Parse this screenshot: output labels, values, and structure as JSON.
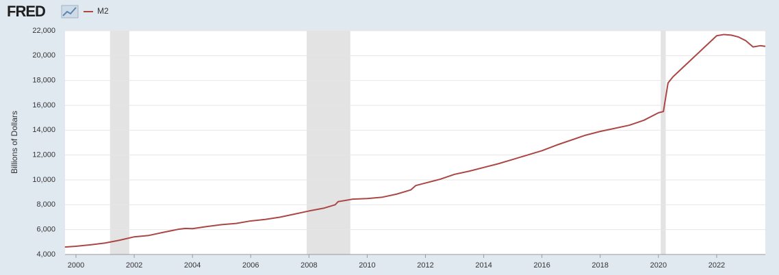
{
  "chart_data": {
    "type": "line",
    "source": "FRED",
    "y_label": "Billions of Dollars",
    "xlim": [
      1999.624,
      2023.67
    ],
    "xticks": [
      2000,
      2002,
      2004,
      2006,
      2008,
      2010,
      2012,
      2014,
      2016,
      2018,
      2020,
      2022
    ],
    "ylim": [
      4000,
      22000
    ],
    "yticks": [
      {
        "value": 4000,
        "label": "4,000"
      },
      {
        "value": 6000,
        "label": "6,000"
      },
      {
        "value": 8000,
        "label": "8,000"
      },
      {
        "value": 10000,
        "label": "10,000"
      },
      {
        "value": 12000,
        "label": "12,000"
      },
      {
        "value": 14000,
        "label": "14,000"
      },
      {
        "value": 16000,
        "label": "16,000"
      },
      {
        "value": 18000,
        "label": "18,000"
      },
      {
        "value": 20000,
        "label": "20,000"
      },
      {
        "value": 22000,
        "label": "22,000"
      }
    ],
    "grid": true,
    "recessions": [
      [
        2001.17,
        2001.83
      ],
      [
        2007.92,
        2009.42
      ],
      [
        2020.08,
        2020.25
      ]
    ],
    "recession_color": "#e3e3e3",
    "x": [
      1999.62,
      2000.0,
      2000.5,
      2001.0,
      2001.5,
      2002.0,
      2002.5,
      2003.0,
      2003.5,
      2003.75,
      2004.0,
      2004.5,
      2005.0,
      2005.5,
      2006.0,
      2006.5,
      2007.0,
      2007.5,
      2008.0,
      2008.5,
      2008.9,
      2009.0,
      2009.5,
      2010.0,
      2010.5,
      2011.0,
      2011.5,
      2011.67,
      2012.0,
      2012.5,
      2013.0,
      2013.5,
      2014.0,
      2014.5,
      2015.0,
      2015.5,
      2016.0,
      2016.5,
      2017.0,
      2017.5,
      2018.0,
      2018.5,
      2019.0,
      2019.5,
      2020.0,
      2020.17,
      2020.33,
      2020.5,
      2021.0,
      2021.5,
      2022.0,
      2022.25,
      2022.5,
      2022.75,
      2023.0,
      2023.25,
      2023.5,
      2023.67
    ],
    "series": [
      {
        "name": "M2",
        "color": "#aa4643",
        "values": [
          4600,
          4660,
          4780,
          4920,
          5150,
          5420,
          5530,
          5780,
          6020,
          6100,
          6080,
          6250,
          6400,
          6500,
          6700,
          6820,
          7000,
          7250,
          7500,
          7720,
          8000,
          8250,
          8450,
          8500,
          8600,
          8850,
          9200,
          9550,
          9750,
          10050,
          10450,
          10700,
          11000,
          11300,
          11650,
          12000,
          12350,
          12800,
          13200,
          13600,
          13900,
          14150,
          14400,
          14800,
          15400,
          15500,
          17800,
          18300,
          19400,
          20500,
          21600,
          21700,
          21650,
          21500,
          21200,
          20700,
          20800,
          20750
        ]
      }
    ]
  }
}
